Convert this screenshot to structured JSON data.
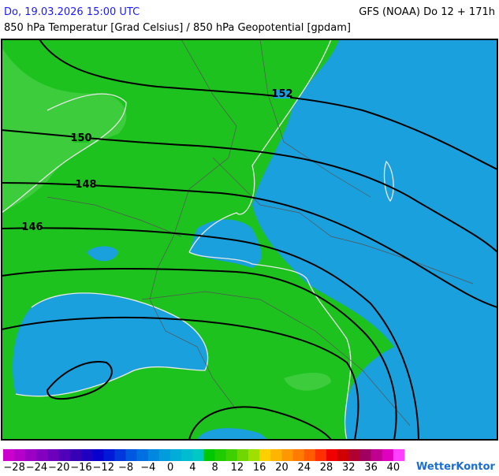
{
  "header": {
    "left": "Do, 19.03.2026 15:00 UTC",
    "right": "GFS (NOAA) Do 12 + 171h",
    "subtitle": "850 hPa Temperatur [Grad Celsius] / 850 hPa Geopotential [gpdam]"
  },
  "contour_labels": [
    "152",
    "150",
    "148",
    "146"
  ],
  "scale": {
    "labels": [
      "−28",
      "−24",
      "−20",
      "−16",
      "−12",
      "−8",
      "−4",
      "0",
      "4",
      "8",
      "12",
      "16",
      "20",
      "24",
      "28",
      "32",
      "36",
      "40"
    ],
    "colors": [
      "#cc00cc",
      "#b400c8",
      "#9c00c4",
      "#8400c0",
      "#6c00bc",
      "#5000b8",
      "#3800b4",
      "#2000c0",
      "#0800cc",
      "#0018d8",
      "#0038dc",
      "#0058e0",
      "#0070e0",
      "#0088e0",
      "#009cdc",
      "#00acd8",
      "#00bcd0",
      "#00c8c4",
      "#00c800",
      "#20cc00",
      "#40d000",
      "#70d800",
      "#a0e000",
      "#ffd000",
      "#ffb400",
      "#ff9800",
      "#ff7c00",
      "#ff5c00",
      "#ff3000",
      "#f00000",
      "#d00000",
      "#b00030",
      "#a00060",
      "#c00090",
      "#e000c0",
      "#ff40ff"
    ]
  },
  "logo": "WetterKontor"
}
